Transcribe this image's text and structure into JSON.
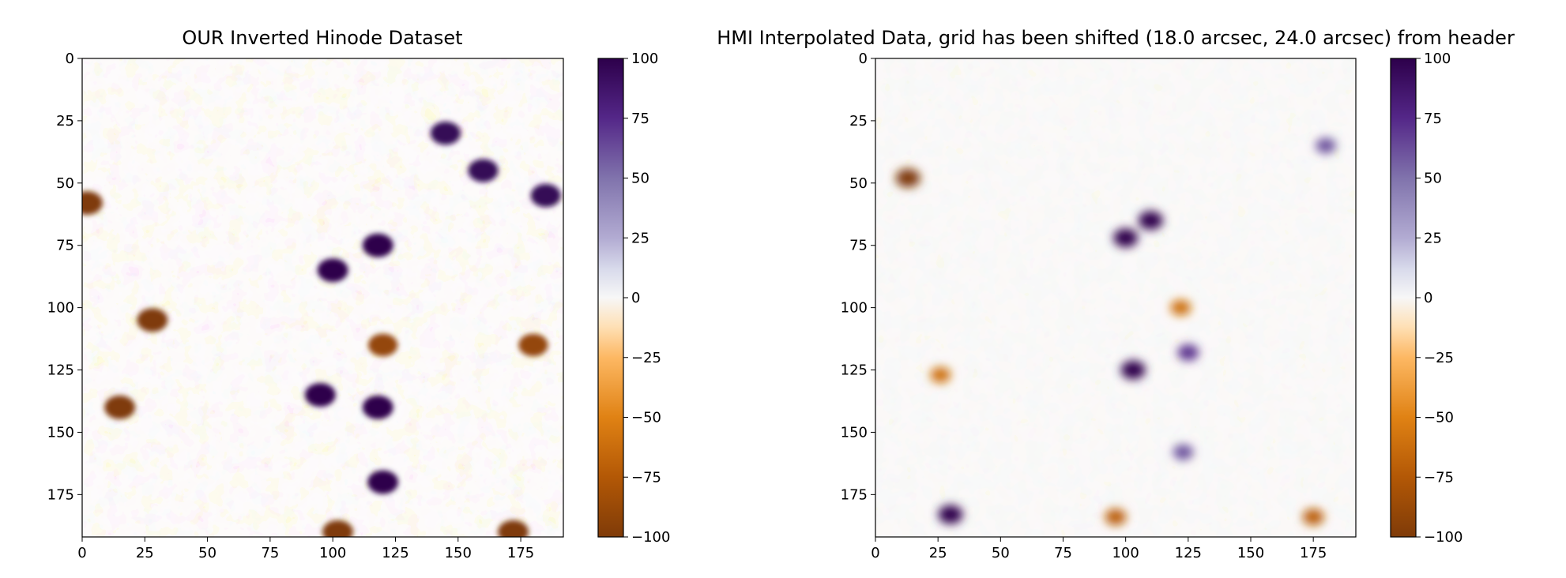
{
  "chart_data": [
    {
      "type": "heatmap",
      "title": "OUR Inverted Hinode Dataset",
      "xlabel": "",
      "ylabel": "",
      "xlim": [
        0,
        192
      ],
      "ylim": [
        192,
        0
      ],
      "x_ticks": [
        0,
        25,
        50,
        75,
        100,
        125,
        150,
        175
      ],
      "y_ticks": [
        0,
        25,
        50,
        75,
        100,
        125,
        150,
        175
      ],
      "colorbar": {
        "range": [
          -100,
          100
        ],
        "ticks": [
          100,
          75,
          50,
          25,
          0,
          -25,
          -50,
          -75,
          -100
        ],
        "tick_labels": [
          "100",
          "75",
          "50",
          "25",
          "0",
          "−25",
          "−50",
          "−75",
          "−100"
        ],
        "colormap": "PuOr (positive = dark purple #2d004b, zero = white #f7f7f7, negative = brown #7f3b08)"
      },
      "features": [
        {
          "x": 2,
          "y": 58,
          "value": -100
        },
        {
          "x": 28,
          "y": 105,
          "value": -100
        },
        {
          "x": 15,
          "y": 140,
          "value": -100
        },
        {
          "x": 120,
          "y": 115,
          "value": -90
        },
        {
          "x": 180,
          "y": 115,
          "value": -90
        },
        {
          "x": 100,
          "y": 85,
          "value": 100
        },
        {
          "x": 118,
          "y": 75,
          "value": 100
        },
        {
          "x": 95,
          "y": 135,
          "value": 100
        },
        {
          "x": 118,
          "y": 140,
          "value": 100
        },
        {
          "x": 145,
          "y": 30,
          "value": 95
        },
        {
          "x": 160,
          "y": 45,
          "value": 95
        },
        {
          "x": 185,
          "y": 55,
          "value": 95
        },
        {
          "x": 120,
          "y": 170,
          "value": 100
        },
        {
          "x": 102,
          "y": 190,
          "value": -100
        },
        {
          "x": 172,
          "y": 190,
          "value": -100
        }
      ]
    },
    {
      "type": "heatmap",
      "title": "HMI Interpolated Data, grid has been shifted (18.0 arcsec, 24.0 arcsec) from header",
      "xlabel": "",
      "ylabel": "",
      "xlim": [
        0,
        192
      ],
      "ylim": [
        192,
        0
      ],
      "x_ticks": [
        0,
        25,
        50,
        75,
        100,
        125,
        150,
        175
      ],
      "y_ticks": [
        0,
        25,
        50,
        75,
        100,
        125,
        150,
        175
      ],
      "colorbar": {
        "range": [
          -100,
          100
        ],
        "ticks": [
          100,
          75,
          50,
          25,
          0,
          -25,
          -50,
          -75,
          -100
        ],
        "tick_labels": [
          "100",
          "75",
          "50",
          "25",
          "0",
          "−25",
          "−50",
          "−75",
          "−100"
        ],
        "colormap": "PuOr (positive = dark purple #2d004b, zero = white #f7f7f7, negative = brown #7f3b08)"
      },
      "features": [
        {
          "x": 13,
          "y": 48,
          "value": -100
        },
        {
          "x": 100,
          "y": 72,
          "value": 100
        },
        {
          "x": 110,
          "y": 65,
          "value": 100
        },
        {
          "x": 103,
          "y": 125,
          "value": 100
        },
        {
          "x": 30,
          "y": 183,
          "value": 100
        },
        {
          "x": 125,
          "y": 118,
          "value": 70
        },
        {
          "x": 123,
          "y": 158,
          "value": 60
        },
        {
          "x": 26,
          "y": 127,
          "value": -60
        },
        {
          "x": 122,
          "y": 100,
          "value": -60
        },
        {
          "x": 96,
          "y": 184,
          "value": -70
        },
        {
          "x": 175,
          "y": 184,
          "value": -70
        },
        {
          "x": 180,
          "y": 35,
          "value": 60
        }
      ]
    }
  ]
}
